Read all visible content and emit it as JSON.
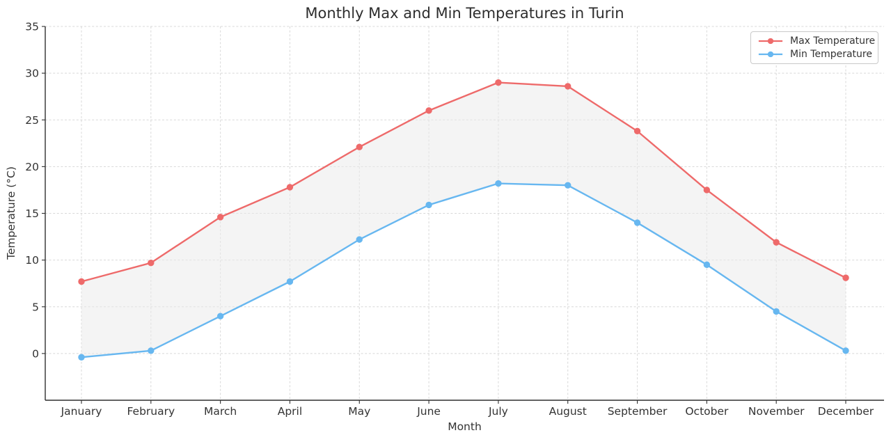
{
  "chart_data": {
    "type": "line",
    "title": "Monthly Max and Min Temperatures in Turin",
    "xlabel": "Month",
    "ylabel": "Temperature (°C)",
    "categories": [
      "January",
      "February",
      "March",
      "April",
      "May",
      "June",
      "July",
      "August",
      "September",
      "October",
      "November",
      "December"
    ],
    "series": [
      {
        "name": "Max Temperature",
        "color": "#ee6a6a",
        "marker": "circle",
        "values": [
          7.7,
          9.7,
          14.6,
          17.8,
          22.1,
          26.0,
          29.0,
          28.6,
          23.8,
          17.5,
          11.9,
          8.1
        ]
      },
      {
        "name": "Min Temperature",
        "color": "#67b7f0",
        "marker": "circle",
        "values": [
          -0.4,
          0.3,
          4.0,
          7.7,
          12.2,
          15.9,
          18.2,
          18.0,
          14.0,
          9.5,
          4.5,
          0.3
        ]
      }
    ],
    "fill_between": {
      "enabled": true,
      "color": "#e9e9e9",
      "opacity": 0.5
    },
    "ylim": [
      -5,
      35
    ],
    "yticks": [
      0,
      5,
      10,
      15,
      20,
      25,
      30,
      35
    ],
    "grid": "dashed-both-axes",
    "legend": {
      "position": "upper right",
      "items": [
        "Max Temperature",
        "Min Temperature"
      ]
    }
  }
}
